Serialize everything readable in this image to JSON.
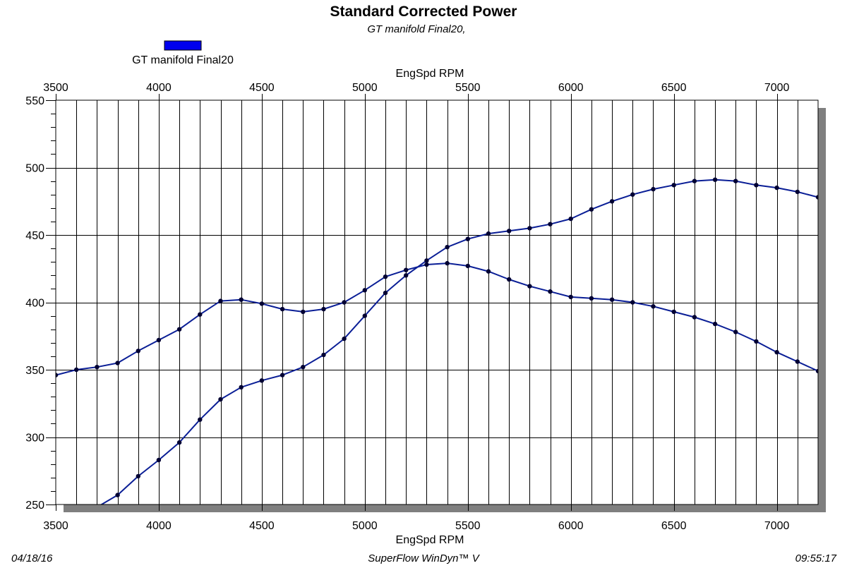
{
  "header": {
    "title": "Standard Corrected Power",
    "subtitle": "GT manifold Final20,"
  },
  "footer": {
    "date": "04/18/16",
    "software": "SuperFlow WinDyn™ V",
    "time": "09:55:17"
  },
  "chart_data": {
    "type": "line",
    "title": "Standard Corrected Power",
    "subtitle": "GT manifold Final20,",
    "xlabel_top": "EngSpd RPM",
    "xlabel_bottom": "EngSpd RPM",
    "ylabel": "",
    "xlim": [
      3500,
      7200
    ],
    "ylim": [
      250,
      550
    ],
    "x_ticks": [
      3500,
      4000,
      4500,
      5000,
      5500,
      6000,
      6500,
      7000
    ],
    "y_ticks": [
      250,
      300,
      350,
      400,
      450,
      500,
      550
    ],
    "x_gridline_step": 100,
    "y_gridline_step": 50,
    "grid": true,
    "legend": {
      "placement": "top-left",
      "entries": [
        {
          "label": "GT manifold Final20",
          "color": "#0000ee"
        }
      ]
    },
    "line_color": "#0a1e96",
    "marker_color": "#000033",
    "series": [
      {
        "name": "GT manifold Final20",
        "x": [
          3500,
          3600,
          3700,
          3800,
          3900,
          4000,
          4100,
          4200,
          4300,
          4400,
          4500,
          4600,
          4700,
          4800,
          4900,
          5000,
          5100,
          5200,
          5300,
          5400,
          5500,
          5600,
          5700,
          5800,
          5900,
          6000,
          6100,
          6200,
          6300,
          6400,
          6500,
          6600,
          6700,
          6800,
          6900,
          7000,
          7100,
          7200
        ],
        "values": [
          346,
          350,
          352,
          355,
          364,
          372,
          380,
          391,
          401,
          402,
          399,
          395,
          393,
          395,
          400,
          409,
          419,
          424,
          428,
          429,
          427,
          423,
          417,
          412,
          408,
          404,
          403,
          402,
          400,
          397,
          393,
          389,
          384,
          378,
          371,
          363,
          356,
          349
        ]
      },
      {
        "x": [
          3700,
          3800,
          3900,
          4000,
          4100,
          4200,
          4300,
          4400,
          4500,
          4600,
          4700,
          4800,
          4900,
          5000,
          5100,
          5200,
          5300,
          5400,
          5500,
          5600,
          5700,
          5800,
          5900,
          6000,
          6100,
          6200,
          6300,
          6400,
          6500,
          6600,
          6700,
          6800,
          6900,
          7000,
          7100,
          7200
        ],
        "values": [
          248,
          257,
          271,
          283,
          296,
          313,
          328,
          337,
          342,
          346,
          352,
          361,
          373,
          390,
          407,
          420,
          431,
          441,
          447,
          451,
          453,
          455,
          458,
          462,
          469,
          475,
          480,
          484,
          487,
          490,
          491,
          490,
          487,
          485,
          482,
          478
        ],
        "marker_start": 3800
      }
    ]
  }
}
